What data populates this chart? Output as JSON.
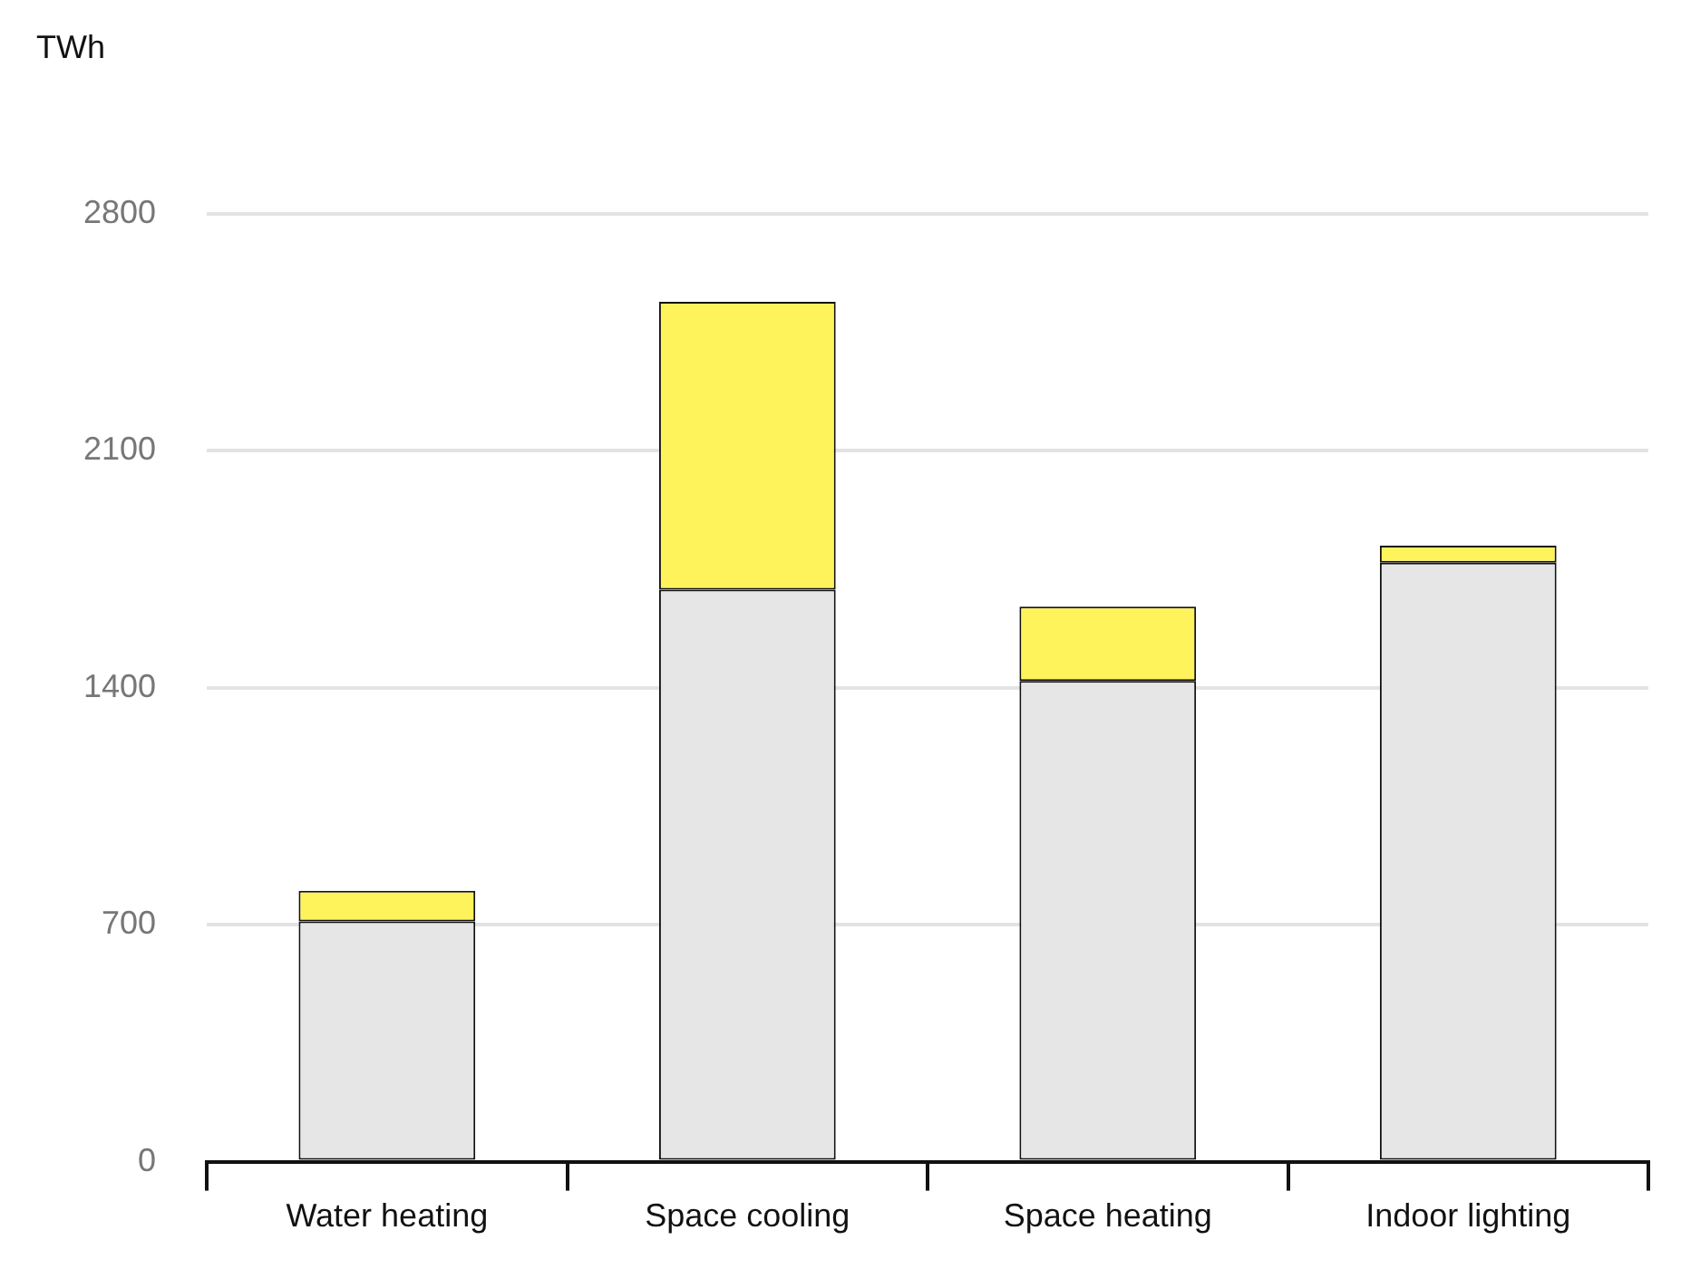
{
  "chart_data": {
    "type": "bar",
    "ylabel": "TWh",
    "categories": [
      "Water heating",
      "Space cooling",
      "Space heating",
      "Indoor lighting"
    ],
    "series": [
      {
        "color": "#e6e6e6",
        "values": [
          710,
          1690,
          1420,
          1770
        ]
      },
      {
        "color": "#fff35c",
        "values": [
          90,
          850,
          220,
          50
        ]
      }
    ],
    "stacked": true,
    "ylim": [
      0,
      2800
    ],
    "yticks": [
      0,
      700,
      1400,
      2100,
      2800
    ],
    "grid": "y"
  }
}
